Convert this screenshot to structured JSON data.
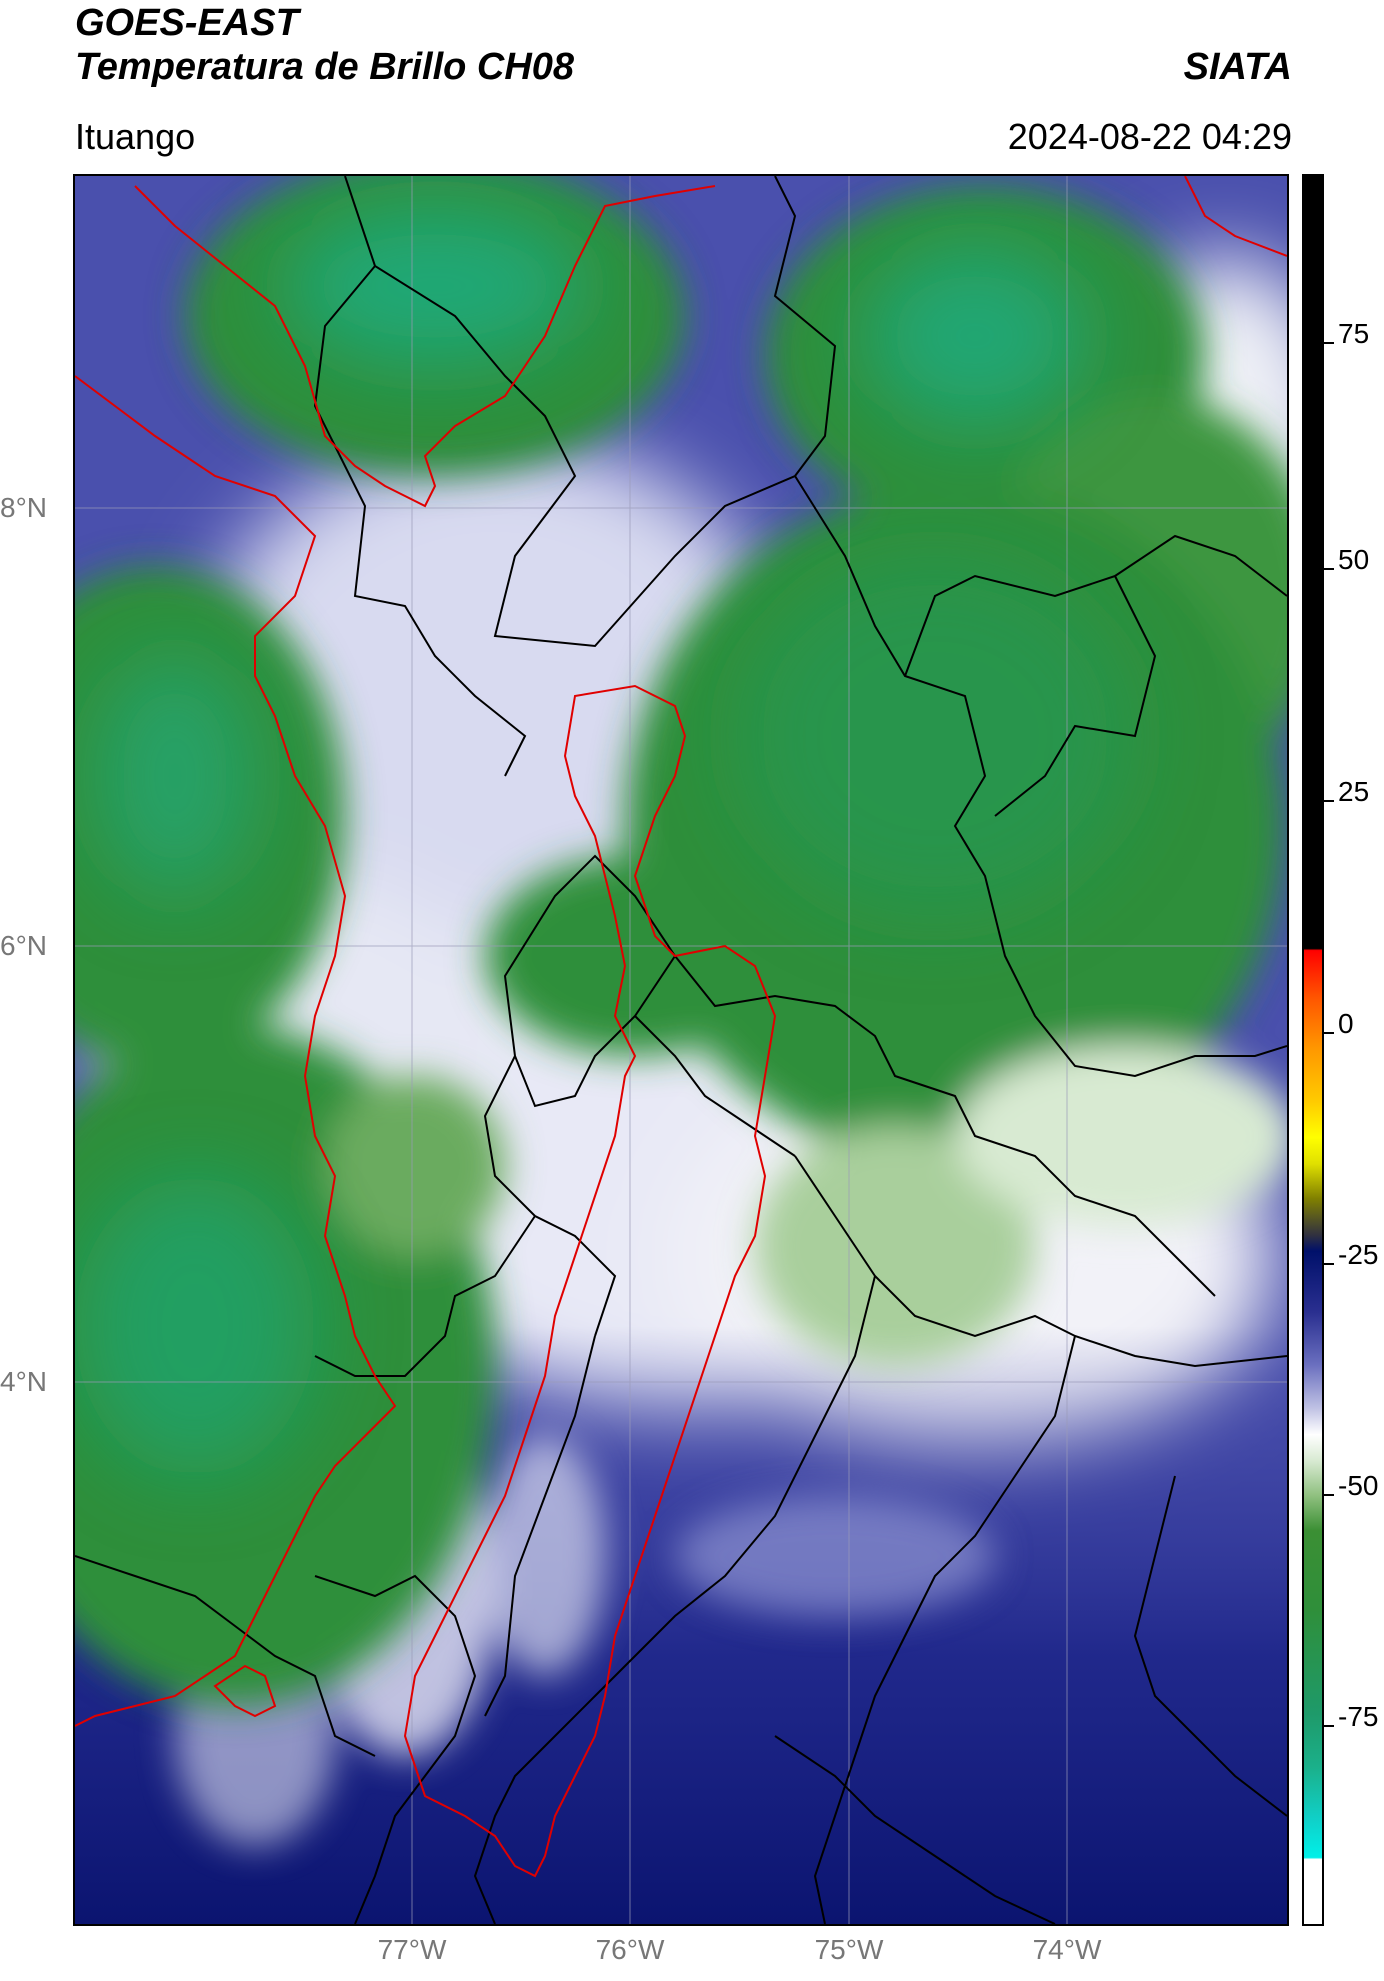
{
  "header": {
    "satellite": "GOES-EAST",
    "product": "Temperatura de Brillo CH08",
    "brand": "SIATA",
    "region": "Ituango",
    "timestamp": "2024-08-22 04:29"
  },
  "map": {
    "lat_labels": [
      "8°N",
      "6°N",
      "4°N"
    ],
    "lon_labels": [
      "77°W",
      "76°W",
      "75°W",
      "74°W"
    ],
    "background_cmap_colors": {
      "cold_green": "#2e8b2e",
      "deep_green": "#1bb08a",
      "blue": "#1c2a8a",
      "lavender": "#8a8fd0",
      "white": "#ffffff",
      "boundary_black": "#000000",
      "boundary_red": "#e00000"
    }
  },
  "colorbar": {
    "labels": [
      "75",
      "50",
      "25",
      "0",
      "-25",
      "-50",
      "-75"
    ]
  }
}
